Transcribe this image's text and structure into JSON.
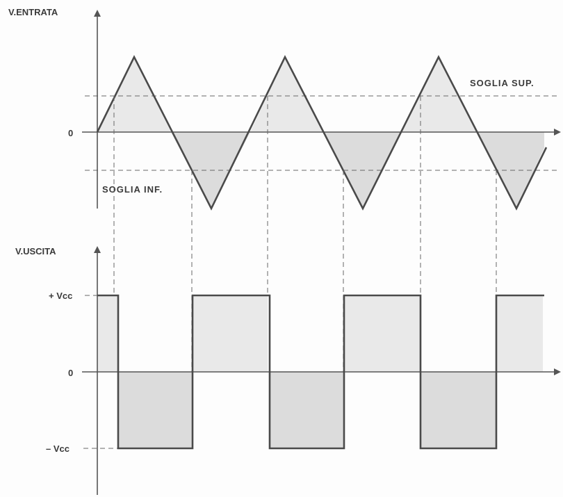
{
  "labels": {
    "input_axis": "V.ENTRATA",
    "output_axis": "V.USCITA",
    "zero_input": "0",
    "zero_output": "0",
    "upper_threshold": "SOGLIA SUP.",
    "lower_threshold": "SOGLIA INF.",
    "plus_vcc": "+ Vcc",
    "minus_vcc": "– Vcc"
  },
  "input_signal": {
    "shape": "triangle",
    "periods_shown": 3,
    "peak_relative": 1.0,
    "upper_threshold_relative": 0.5,
    "lower_threshold_relative": -0.5
  },
  "output_signal": {
    "shape": "square",
    "high": "+Vcc",
    "low": "-Vcc"
  },
  "colors": {
    "line": "#4a4a4a",
    "shade": "#e5e5e5",
    "background": "#fdfdfd"
  }
}
